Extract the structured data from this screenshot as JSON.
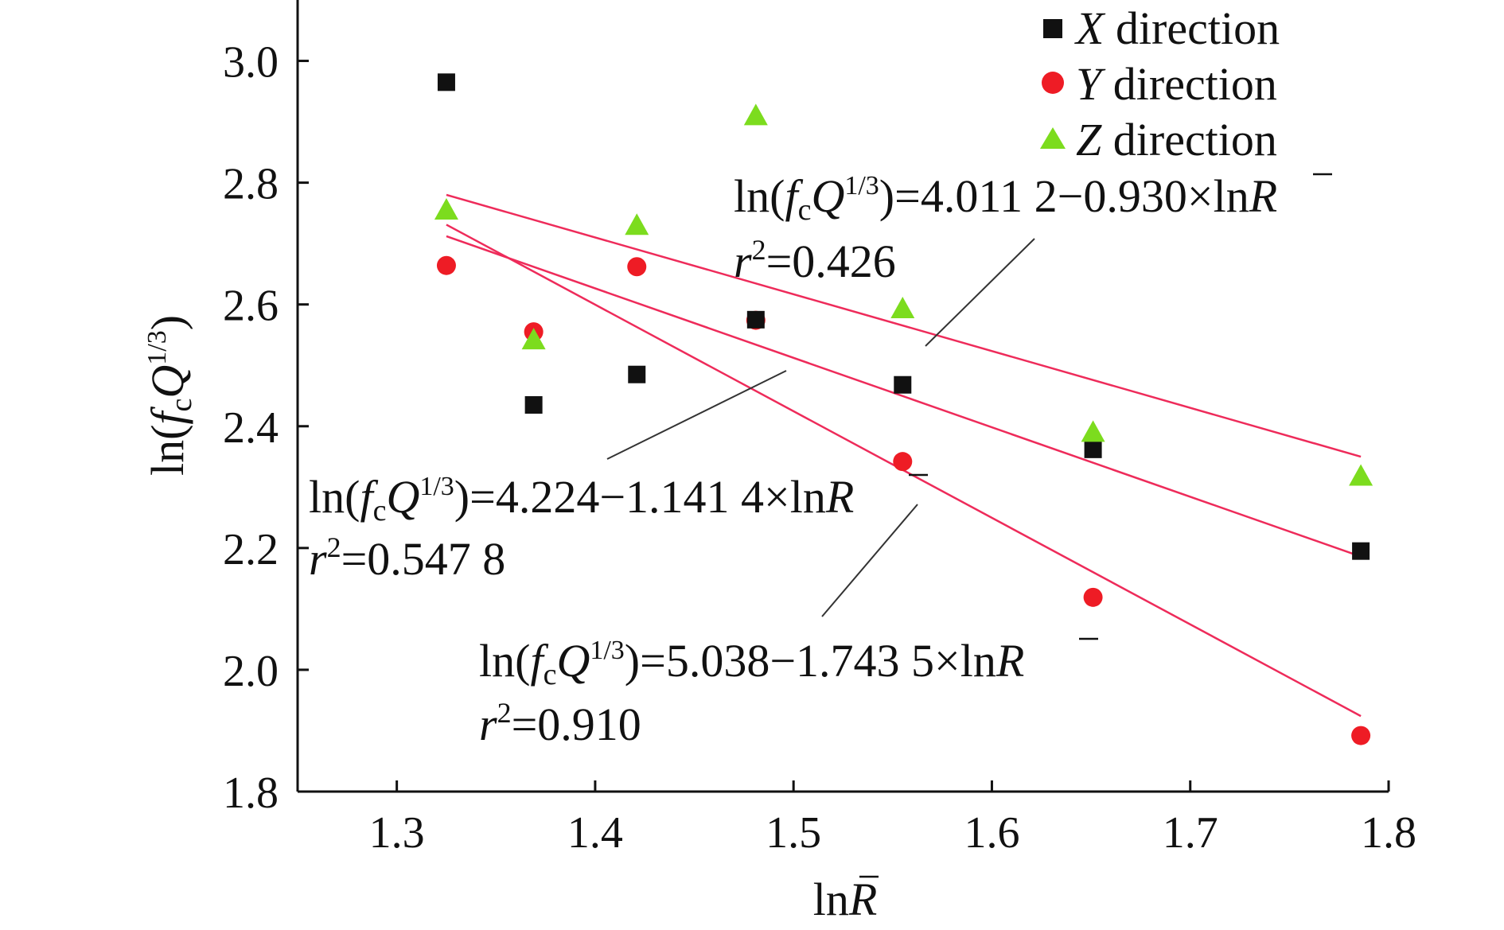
{
  "chart_data": {
    "type": "scatter",
    "xlabel": {
      "prefix": "ln",
      "var": "R"
    },
    "ylabel": {
      "prefix": "ln(",
      "f": "f",
      "sub": "c",
      "q": "Q",
      "sup": "1/3",
      "suffix": ")"
    },
    "xlim": [
      1.25,
      1.8
    ],
    "ylim": [
      1.8,
      3.1
    ],
    "x_ticks": [
      "1.3",
      "1.4",
      "1.5",
      "1.6",
      "1.7",
      "1.8"
    ],
    "y_ticks": [
      "1.8",
      "2.0",
      "2.2",
      "2.4",
      "2.6",
      "2.8",
      "3.0"
    ],
    "x": [
      1.325,
      1.369,
      1.421,
      1.481,
      1.555,
      1.651,
      1.786
    ],
    "series": [
      {
        "name_var": "X",
        "name_rest": " direction",
        "marker": "square",
        "color": "#111111",
        "values": [
          2.965,
          2.435,
          2.485,
          2.575,
          2.468,
          2.362,
          2.195
        ]
      },
      {
        "name_var": "Y",
        "name_rest": " direction",
        "marker": "circle",
        "color": "#ee1c25",
        "values": [
          2.664,
          2.555,
          2.662,
          2.574,
          2.342,
          2.119,
          1.892
        ]
      },
      {
        "name_var": "Z",
        "name_rest": " direction",
        "marker": "triangle",
        "color": "#7cdc1e",
        "values": [
          2.755,
          2.542,
          2.73,
          2.91,
          2.593,
          2.39,
          2.318
        ]
      }
    ],
    "fit_line_color": "#ee2b5a",
    "fits": [
      {
        "x": [
          1.325,
          1.786
        ],
        "y": [
          2.78,
          2.35
        ]
      },
      {
        "x": [
          1.325,
          1.786
        ],
        "y": [
          2.712,
          2.186
        ]
      },
      {
        "x": [
          1.325,
          1.786
        ],
        "y": [
          2.731,
          1.924
        ]
      }
    ],
    "annotations": [
      {
        "eq_pre": "=4.011 2−0.930×ln",
        "r2": "=0.426"
      },
      {
        "eq_pre": "=4.224−1.141 4×ln",
        "r2": "=0.547 8"
      },
      {
        "eq_pre": "=5.038−1.743 5×ln",
        "r2": "=0.910"
      }
    ],
    "annotation_lhs": {
      "prefix": "ln(",
      "f": "f",
      "sub": "c",
      "q": "Q",
      "sup": "1/3",
      "suffix": ")"
    },
    "annotation_r": "R",
    "r2_var": "r",
    "r2_sup": "2",
    "legend_position": "top-right",
    "grid": false
  }
}
